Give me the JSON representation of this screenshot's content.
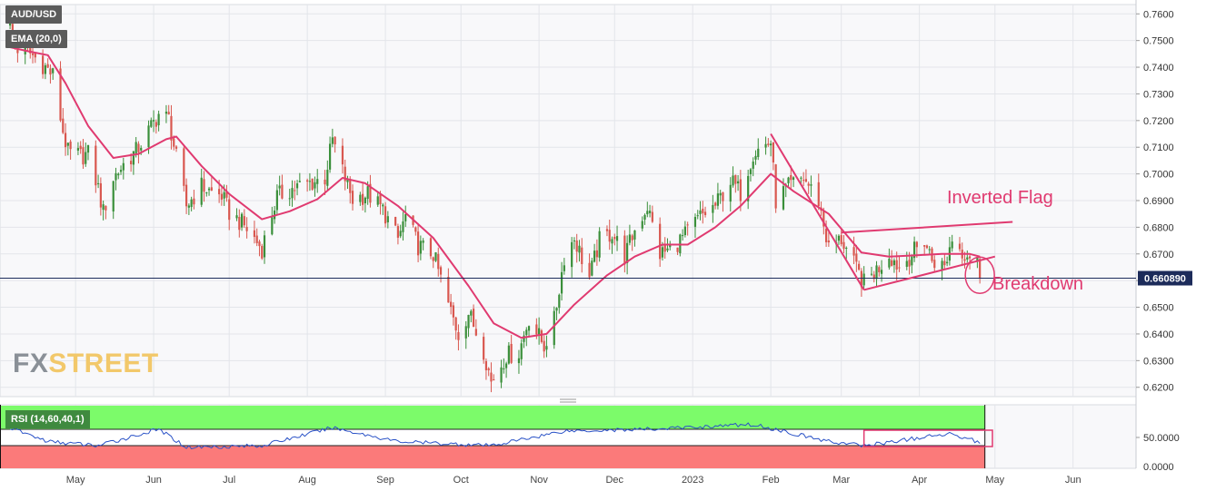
{
  "header": {
    "symbol": "AUD/USD",
    "indicator": "EMA (20,0)"
  },
  "watermark": {
    "part1": "FX",
    "part2": "STREET"
  },
  "rsi_panel": {
    "label": "RSI (14,60,40,1)",
    "tick_labels": [
      "50.0000",
      "0.0000"
    ]
  },
  "colors": {
    "up_candle": "#3a8f3a",
    "down_candle": "#d9574f",
    "ema": "#e03a70",
    "annotation": "#e03a70",
    "rsi_line": "#2a52c7",
    "rsi_upper_zone": "#7cfb6a",
    "rsi_lower_zone": "#fb7a7a",
    "price_line": "#1c2b5a"
  },
  "chart_data": {
    "type": "candlestick",
    "title": "AUD/USD",
    "ylim": [
      0.6165,
      0.7635
    ],
    "x_tick_labels": [
      "May",
      "Jun",
      "Jul",
      "Aug",
      "Sep",
      "Oct",
      "Nov",
      "Dec",
      "2023",
      "Feb",
      "Mar",
      "Apr",
      "May",
      "Jun"
    ],
    "y_tick_labels": [
      "0.7600",
      "0.7500",
      "0.7400",
      "0.7300",
      "0.7200",
      "0.7100",
      "0.7000",
      "0.6900",
      "0.6800",
      "0.6700",
      "0.6600",
      "0.6500",
      "0.6400",
      "0.6300",
      "0.6200"
    ],
    "current_price": 0.6609,
    "current_price_label": "0.660890",
    "close_path": [
      [
        "2022-04-05",
        0.755
      ],
      [
        "2022-04-08",
        0.747
      ],
      [
        "2022-04-12",
        0.746
      ],
      [
        "2022-04-18",
        0.741
      ],
      [
        "2022-04-22",
        0.737
      ],
      [
        "2022-04-26",
        0.716
      ],
      [
        "2022-04-28",
        0.708
      ],
      [
        "2022-05-03",
        0.7067
      ],
      [
        "2022-05-06",
        0.7075
      ],
      [
        "2022-05-10",
        0.6945
      ],
      [
        "2022-05-12",
        0.6855
      ],
      [
        "2022-05-16",
        0.6985
      ],
      [
        "2022-05-20",
        0.7035
      ],
      [
        "2022-05-25",
        0.7085
      ],
      [
        "2022-05-31",
        0.7175
      ],
      [
        "2022-06-03",
        0.7225
      ],
      [
        "2022-06-07",
        0.7205
      ],
      [
        "2022-06-10",
        0.7058
      ],
      [
        "2022-06-14",
        0.688
      ],
      [
        "2022-06-20",
        0.6955
      ],
      [
        "2022-06-24",
        0.693
      ],
      [
        "2022-06-28",
        0.692
      ],
      [
        "2022-07-01",
        0.6855
      ],
      [
        "2022-07-07",
        0.6805
      ],
      [
        "2022-07-14",
        0.672
      ],
      [
        "2022-07-20",
        0.6915
      ],
      [
        "2022-07-26",
        0.6945
      ],
      [
        "2022-08-02",
        0.6965
      ],
      [
        "2022-08-08",
        0.6985
      ],
      [
        "2022-08-11",
        0.7128
      ],
      [
        "2022-08-15",
        0.701
      ],
      [
        "2022-08-19",
        0.6905
      ],
      [
        "2022-08-25",
        0.6925
      ],
      [
        "2022-08-31",
        0.6865
      ],
      [
        "2022-09-06",
        0.6755
      ],
      [
        "2022-09-09",
        0.684
      ],
      [
        "2022-09-14",
        0.673
      ],
      [
        "2022-09-20",
        0.67
      ],
      [
        "2022-09-26",
        0.651
      ],
      [
        "2022-09-30",
        0.64
      ],
      [
        "2022-10-04",
        0.648
      ],
      [
        "2022-10-10",
        0.634
      ],
      [
        "2022-10-13",
        0.622
      ],
      [
        "2022-10-19",
        0.632
      ],
      [
        "2022-10-24",
        0.633
      ],
      [
        "2022-10-28",
        0.646
      ],
      [
        "2022-11-03",
        0.6355
      ],
      [
        "2022-11-07",
        0.645
      ],
      [
        "2022-11-11",
        0.669
      ],
      [
        "2022-11-15",
        0.676
      ],
      [
        "2022-11-21",
        0.661
      ],
      [
        "2022-11-25",
        0.675
      ],
      [
        "2022-11-30",
        0.678
      ],
      [
        "2022-12-05",
        0.669
      ],
      [
        "2022-12-09",
        0.679
      ],
      [
        "2022-12-14",
        0.688
      ],
      [
        "2022-12-19",
        0.67
      ],
      [
        "2022-12-23",
        0.6715
      ],
      [
        "2022-12-29",
        0.677
      ],
      [
        "2023-01-04",
        0.684
      ],
      [
        "2023-01-10",
        0.688
      ],
      [
        "2023-01-16",
        0.6975
      ],
      [
        "2023-01-20",
        0.693
      ],
      [
        "2023-01-25",
        0.708
      ],
      [
        "2023-02-01",
        0.712
      ],
      [
        "2023-02-03",
        0.69
      ],
      [
        "2023-02-08",
        0.695
      ],
      [
        "2023-02-14",
        0.6985
      ],
      [
        "2023-02-20",
        0.69
      ],
      [
        "2023-02-24",
        0.672
      ],
      [
        "2023-03-01",
        0.6755
      ],
      [
        "2023-03-07",
        0.664
      ],
      [
        "2023-03-10",
        0.659
      ],
      [
        "2023-03-15",
        0.664
      ],
      [
        "2023-03-20",
        0.67
      ],
      [
        "2023-03-24",
        0.665
      ],
      [
        "2023-03-29",
        0.67
      ],
      [
        "2023-04-03",
        0.675
      ],
      [
        "2023-04-06",
        0.668
      ],
      [
        "2023-04-11",
        0.665
      ],
      [
        "2023-04-14",
        0.676
      ],
      [
        "2023-04-18",
        0.671
      ],
      [
        "2023-04-21",
        0.67
      ],
      [
        "2023-04-24",
        0.669
      ],
      [
        "2023-04-25",
        0.6609
      ]
    ],
    "ema_20": [
      [
        "2022-04-05",
        0.7475
      ],
      [
        "2022-04-12",
        0.746
      ],
      [
        "2022-04-20",
        0.7445
      ],
      [
        "2022-04-27",
        0.734
      ],
      [
        "2022-05-06",
        0.718
      ],
      [
        "2022-05-16",
        0.706
      ],
      [
        "2022-05-26",
        0.7075
      ],
      [
        "2022-06-06",
        0.713
      ],
      [
        "2022-06-10",
        0.714
      ],
      [
        "2022-06-20",
        0.703
      ],
      [
        "2022-07-01",
        0.6925
      ],
      [
        "2022-07-14",
        0.683
      ],
      [
        "2022-07-25",
        0.686
      ],
      [
        "2022-08-05",
        0.6905
      ],
      [
        "2022-08-15",
        0.6985
      ],
      [
        "2022-08-24",
        0.6965
      ],
      [
        "2022-09-06",
        0.688
      ],
      [
        "2022-09-20",
        0.676
      ],
      [
        "2022-10-04",
        0.658
      ],
      [
        "2022-10-14",
        0.644
      ],
      [
        "2022-10-25",
        0.6385
      ],
      [
        "2022-11-04",
        0.64
      ],
      [
        "2022-11-15",
        0.651
      ],
      [
        "2022-11-28",
        0.662
      ],
      [
        "2022-12-09",
        0.669
      ],
      [
        "2022-12-20",
        0.6735
      ],
      [
        "2022-12-30",
        0.6735
      ],
      [
        "2023-01-10",
        0.68
      ],
      [
        "2023-01-20",
        0.688
      ],
      [
        "2023-02-01",
        0.7
      ],
      [
        "2023-02-10",
        0.6935
      ],
      [
        "2023-02-24",
        0.685
      ],
      [
        "2023-03-09",
        0.6705
      ],
      [
        "2023-03-20",
        0.669
      ],
      [
        "2023-03-31",
        0.6695
      ],
      [
        "2023-04-10",
        0.67
      ],
      [
        "2023-04-21",
        0.67
      ],
      [
        "2023-04-25",
        0.669
      ]
    ],
    "rsi": {
      "ylim": [
        0,
        100
      ],
      "upper_band": 60,
      "lower_band": 40,
      "values": [
        [
          "2022-04-05",
          62
        ],
        [
          "2022-04-20",
          45
        ],
        [
          "2022-05-10",
          40
        ],
        [
          "2022-06-03",
          60
        ],
        [
          "2022-06-14",
          38
        ],
        [
          "2022-07-14",
          40
        ],
        [
          "2022-08-11",
          62
        ],
        [
          "2022-09-06",
          45
        ],
        [
          "2022-10-13",
          40
        ],
        [
          "2022-11-11",
          58
        ],
        [
          "2022-12-14",
          60
        ],
        [
          "2023-01-25",
          66
        ],
        [
          "2023-02-24",
          45
        ],
        [
          "2023-03-10",
          40
        ],
        [
          "2023-04-14",
          55
        ],
        [
          "2023-04-25",
          44
        ]
      ]
    },
    "annotations": [
      {
        "text": "Inverted Flag",
        "lines": [
          {
            "from": [
              "2023-02-01",
              0.715
            ],
            "to": [
              "2023-03-10",
              0.6565
            ]
          },
          {
            "from": [
              "2023-03-10",
              0.6565
            ],
            "to": [
              "2023-05-01",
              0.669
            ]
          },
          {
            "from": [
              "2023-03-01",
              0.678
            ],
            "to": [
              "2023-05-08",
              0.682
            ]
          }
        ]
      },
      {
        "text": "Breakdown",
        "circle_center": [
          "2023-04-25",
          0.662
        ]
      }
    ]
  }
}
